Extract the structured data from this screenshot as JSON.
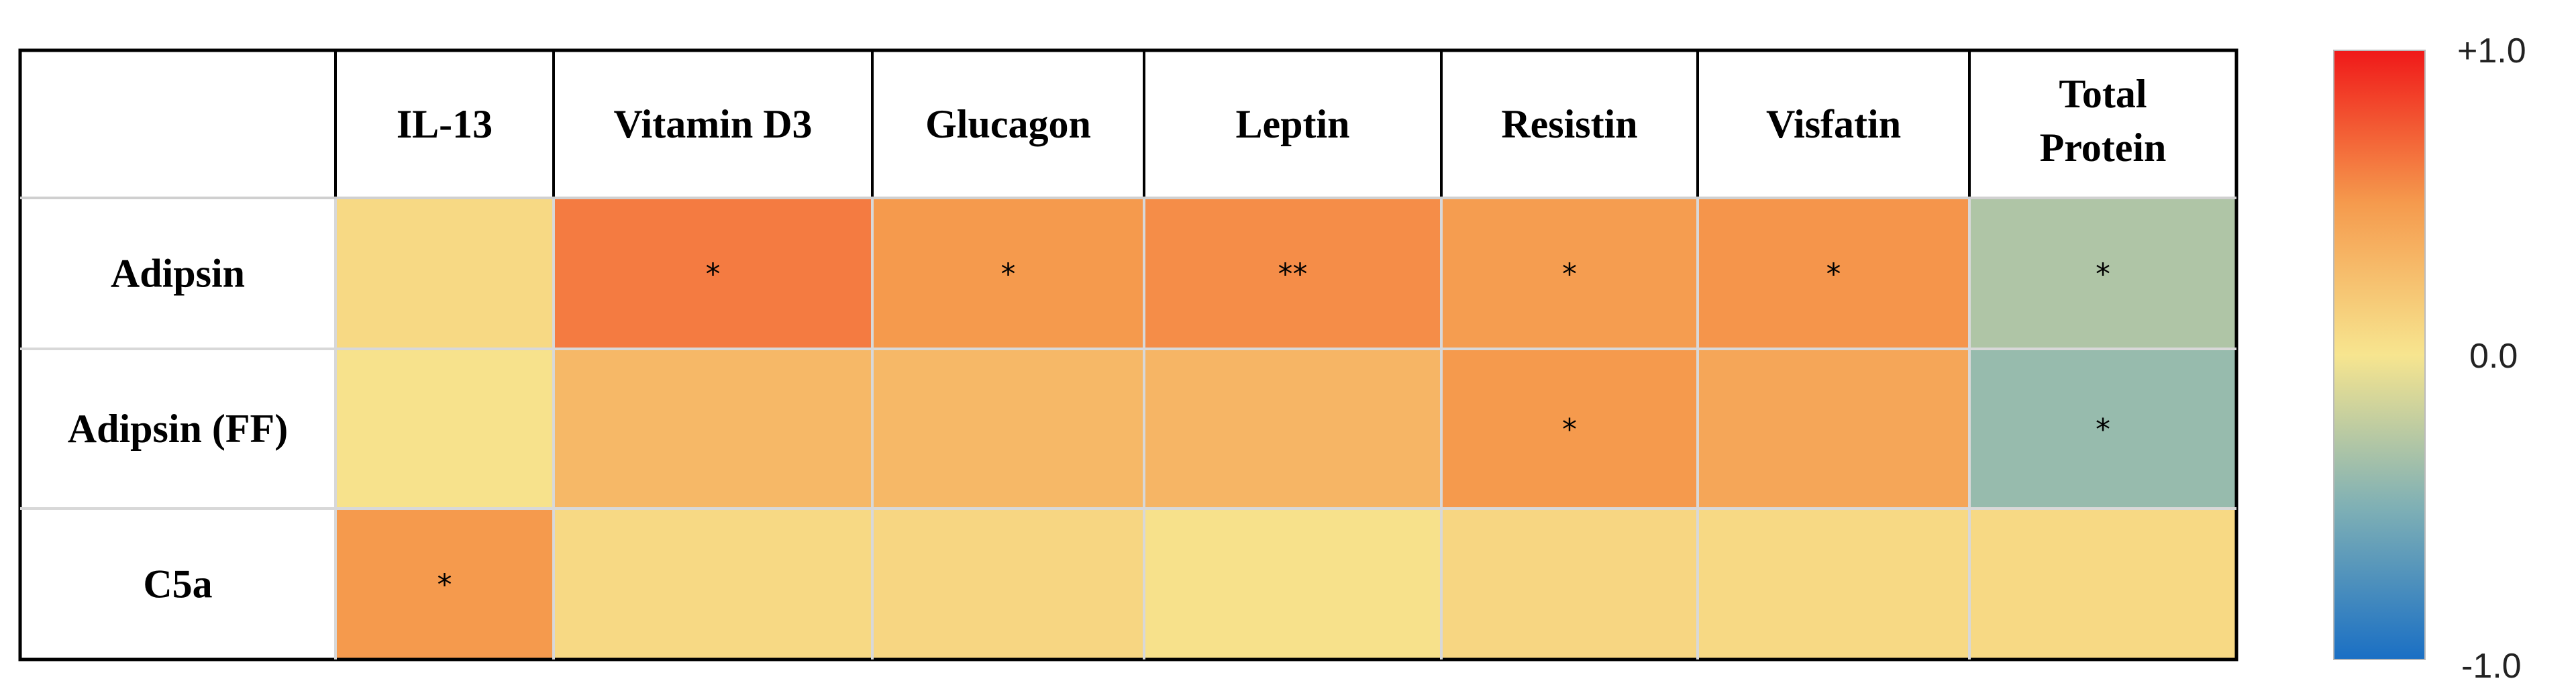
{
  "chart_data": {
    "type": "heatmap",
    "columns": [
      "IL-13",
      "Vitamin D3",
      "Glucagon",
      "Leptin",
      "Resistin",
      "Visfatin",
      "Total Protein"
    ],
    "rows": [
      "Adipsin",
      "Adipsin (FF)",
      "C5a"
    ],
    "values": [
      [
        0.08,
        0.62,
        0.5,
        0.55,
        0.48,
        0.52,
        -0.3
      ],
      [
        0.02,
        0.3,
        0.3,
        0.32,
        0.5,
        0.42,
        -0.4
      ],
      [
        0.5,
        0.08,
        0.1,
        0.03,
        0.1,
        0.08,
        0.08
      ]
    ],
    "significance": [
      [
        "",
        "*",
        "*",
        "**",
        "*",
        "*",
        "*"
      ],
      [
        "",
        "",
        "",
        "",
        "*",
        "",
        "*"
      ],
      [
        "*",
        "",
        "",
        "",
        "",
        "",
        ""
      ]
    ],
    "colorbar": {
      "min": -1.0,
      "max": 1.0,
      "tick_labels": [
        "+1.0",
        "0.0",
        "-1.0"
      ],
      "colors": [
        "#1a6fc4",
        "#f7e58f",
        "#f01919"
      ]
    }
  }
}
